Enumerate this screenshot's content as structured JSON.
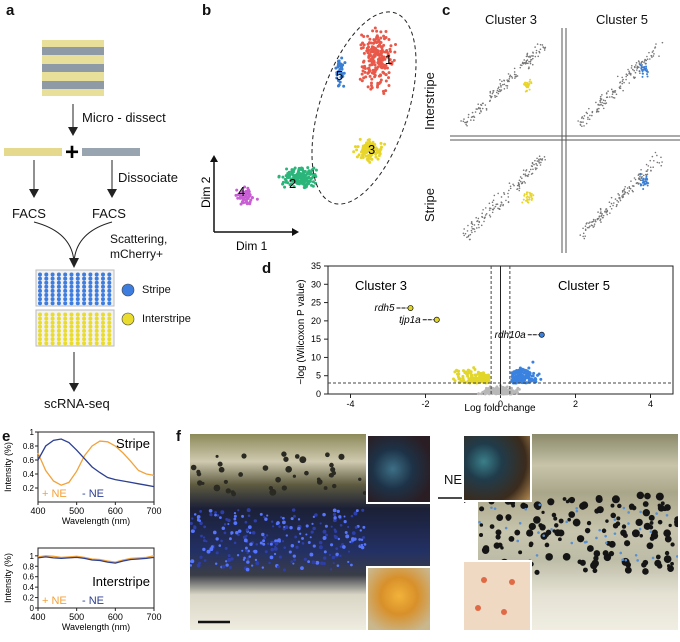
{
  "panels": {
    "a": {
      "letter": "a",
      "steps": [
        "Micro - dissect",
        "Dissociate",
        "FACS",
        "FACS",
        "Scattering,",
        "mCherry+",
        "scRNA-seq"
      ],
      "legend": [
        {
          "label": "Stripe",
          "color": "#3e7de0"
        },
        {
          "label": "Interstripe",
          "color": "#eadc2f"
        }
      ]
    },
    "b": {
      "letter": "b",
      "xlabel": "Dim 1",
      "ylabel": "Dim 2",
      "clusters": [
        "1",
        "2",
        "3",
        "4",
        "5"
      ]
    },
    "c": {
      "letter": "c",
      "cols": [
        "Cluster 3",
        "Cluster 5"
      ],
      "rows": [
        "Interstripe",
        "Stripe"
      ]
    },
    "d": {
      "letter": "d",
      "genes": [
        "rdh5",
        "tjp1a",
        "rdh10a"
      ]
    },
    "e": {
      "letter": "e"
    },
    "f": {
      "letter": "f",
      "arrow_label": "NE"
    }
  },
  "chart_data": [
    {
      "type": "scatter",
      "panel": "d",
      "title": "",
      "xlabel": "Log fold change",
      "ylabel": "−log (Wilcoxon P value)",
      "xlim": [
        -4.6,
        4.6
      ],
      "ylim": [
        0,
        35
      ],
      "xticks": [
        -4,
        -2,
        0,
        2,
        4
      ],
      "yticks": [
        0,
        5,
        10,
        15,
        20,
        25,
        30,
        35
      ],
      "cluster_labels": [
        "Cluster 3",
        "Cluster 5"
      ],
      "threshold_lines": {
        "x": [
          -0.25,
          0.25
        ],
        "y": 3
      },
      "highlighted": [
        {
          "gene": "rdh5",
          "x": -2.4,
          "y": 23.5
        },
        {
          "gene": "tjp1a",
          "x": -1.7,
          "y": 20.3
        },
        {
          "gene": "rdh10a",
          "x": 1.1,
          "y": 16.2
        }
      ]
    },
    {
      "type": "line",
      "panel": "e-top",
      "title": "Stripe",
      "xlabel": "Wavelength (nm)",
      "ylabel": "Intensity (%)",
      "xlim": [
        400,
        700
      ],
      "ylim": [
        0,
        1
      ],
      "xticks": [
        400,
        500,
        600,
        700
      ],
      "yticks": [
        0.2,
        0.4,
        0.6,
        0.8,
        1
      ],
      "series_labels": [
        "+ NE",
        "- NE"
      ],
      "series": [
        {
          "name": "+ NE",
          "color": "#f2a23a",
          "x": [
            400,
            420,
            440,
            460,
            480,
            500,
            520,
            540,
            560,
            580,
            600,
            620,
            640,
            660,
            680,
            700
          ],
          "y": [
            0.7,
            0.45,
            0.3,
            0.24,
            0.28,
            0.44,
            0.66,
            0.8,
            0.87,
            0.86,
            0.8,
            0.7,
            0.58,
            0.45,
            0.4,
            0.38
          ]
        },
        {
          "name": "- NE",
          "color": "#2c3f92",
          "x": [
            400,
            420,
            440,
            460,
            480,
            500,
            520,
            540,
            560,
            580,
            600,
            620,
            640,
            660,
            680,
            700
          ],
          "y": [
            0.6,
            0.8,
            0.88,
            0.9,
            0.85,
            0.74,
            0.62,
            0.5,
            0.42,
            0.35,
            0.32,
            0.3,
            0.28,
            0.26,
            0.24,
            0.22
          ]
        }
      ]
    },
    {
      "type": "line",
      "panel": "e-bottom",
      "title": "Interstripe",
      "xlabel": "Wavelength (nm)",
      "ylabel": "Intensity (%)",
      "xlim": [
        400,
        700
      ],
      "ylim": [
        0,
        1.15
      ],
      "xticks": [
        400,
        500,
        600,
        700
      ],
      "yticks": [
        0,
        0.2,
        0.4,
        0.6,
        0.8,
        1
      ],
      "series_labels": [
        "+ NE",
        "- NE"
      ],
      "series": [
        {
          "name": "+ NE",
          "color": "#f2a23a",
          "x": [
            400,
            420,
            440,
            460,
            480,
            500,
            520,
            540,
            560,
            580,
            600,
            620,
            640,
            660,
            680,
            700
          ],
          "y": [
            0.98,
            1.0,
            0.99,
            0.97,
            0.98,
            0.99,
            0.97,
            0.94,
            0.93,
            0.9,
            0.88,
            0.92,
            0.95,
            0.96,
            0.97,
            1.0
          ]
        },
        {
          "name": "- NE",
          "color": "#2c3f92",
          "x": [
            400,
            420,
            440,
            460,
            480,
            500,
            520,
            540,
            560,
            580,
            600,
            620,
            640,
            660,
            680,
            700
          ],
          "y": [
            0.96,
            0.98,
            0.96,
            0.95,
            0.96,
            0.97,
            0.95,
            0.92,
            0.91,
            0.88,
            0.86,
            0.9,
            0.93,
            0.94,
            0.95,
            0.97
          ]
        }
      ]
    }
  ]
}
